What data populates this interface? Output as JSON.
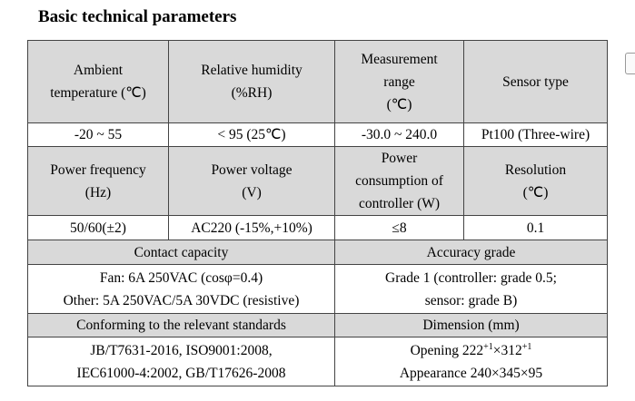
{
  "title": "Basic technical parameters",
  "table": {
    "rows": [
      {
        "header": true,
        "cells": [
          [
            "Ambient",
            "temperature (℃)"
          ],
          [
            "Relative humidity",
            "(%RH)"
          ],
          [
            "Measurement",
            "range",
            "(℃)"
          ],
          [
            "Sensor type"
          ]
        ]
      },
      {
        "header": false,
        "cells": [
          [
            "-20 ~ 55"
          ],
          [
            "< 95 (25℃)"
          ],
          [
            "-30.0 ~ 240.0"
          ],
          [
            "Pt100 (Three-wire)"
          ]
        ]
      },
      {
        "header": true,
        "cells": [
          [
            "Power frequency",
            "(Hz)"
          ],
          [
            "Power voltage",
            "(V)"
          ],
          [
            "Power",
            "consumption of",
            "controller (W)"
          ],
          [
            "Resolution",
            "(℃)"
          ]
        ]
      },
      {
        "header": false,
        "cells": [
          [
            "50/60(±2)"
          ],
          [
            "AC220 (-15%,+10%)"
          ],
          [
            "≤8"
          ],
          [
            "0.1"
          ]
        ]
      },
      {
        "header": true,
        "cells": [
          [
            "Contact capacity"
          ],
          [
            "Accuracy grade"
          ]
        ]
      },
      {
        "header": false,
        "cells": [
          [
            "Fan: 6A 250VAC (cosφ=0.4)",
            "Other: 5A 250VAC/5A 30VDC (resistive)"
          ],
          [
            "Grade 1 (controller: grade 0.5;",
            "sensor: grade B)"
          ]
        ]
      },
      {
        "header": true,
        "cells": [
          [
            "Conforming to the relevant standards"
          ],
          [
            "Dimension (mm)"
          ]
        ]
      },
      {
        "header": false,
        "cells": [
          [
            "JB/T7631-2016,  ISO9001:2008,",
            "IEC61000-4:2002,  GB/T17626-2008"
          ],
          [
            [
              "Opening 222",
              "+1",
              "×312",
              "+1"
            ],
            [
              "Appearance 240×345×95"
            ]
          ]
        ]
      }
    ]
  }
}
